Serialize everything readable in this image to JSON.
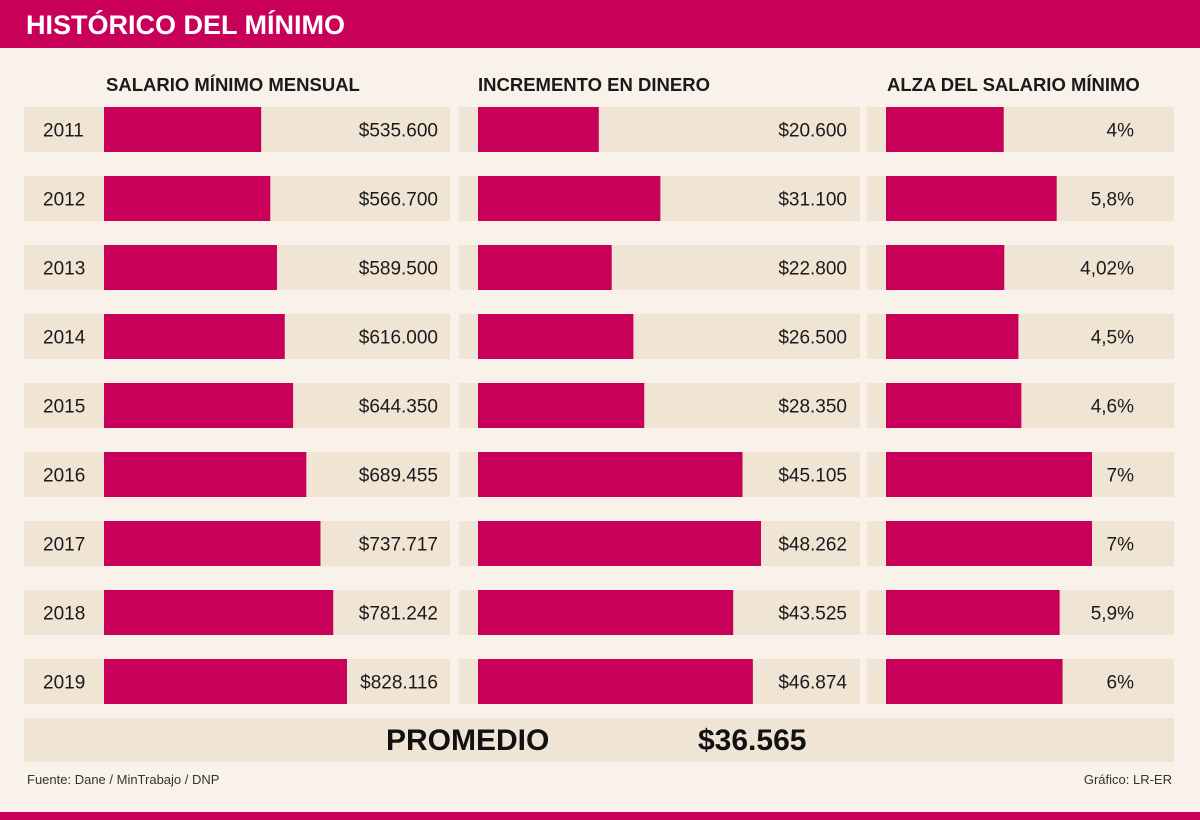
{
  "title": "HISTÓRICO DEL MÍNIMO",
  "chart_data": {
    "type": "bar",
    "categories": [
      "2011",
      "2012",
      "2013",
      "2014",
      "2015",
      "2016",
      "2017",
      "2018",
      "2019"
    ],
    "series": [
      {
        "name": "SALARIO MÍNIMO MENSUAL",
        "values": [
          535600,
          566700,
          589500,
          616000,
          644350,
          689455,
          737717,
          781242,
          828116
        ],
        "labels": [
          "$535.600",
          "$566.700",
          "$589.500",
          "$616.000",
          "$644.350",
          "$689.455",
          "$737.717",
          "$781.242",
          "$828.116"
        ]
      },
      {
        "name": "INCREMENTO EN DINERO",
        "values": [
          20600,
          31100,
          22800,
          26500,
          28350,
          45105,
          48262,
          43525,
          46874
        ],
        "labels": [
          "$20.600",
          "$31.100",
          "$22.800",
          "$26.500",
          "$28.350",
          "$45.105",
          "$48.262",
          "$43.525",
          "$46.874"
        ]
      },
      {
        "name": "ALZA DEL SALARIO MÍNIMO",
        "values": [
          4,
          5.8,
          4.02,
          4.5,
          4.6,
          7,
          7,
          5.9,
          6
        ],
        "labels": [
          "4%",
          "5,8%",
          "4,02%",
          "4,5%",
          "4,6%",
          "7%",
          "7%",
          "5,9%",
          "6%"
        ]
      }
    ],
    "average": {
      "label": "PROMEDIO",
      "value": "$36.565"
    }
  },
  "source": "Fuente: Dane / MinTrabajo / DNP",
  "credit": "Gráfico: LR-ER",
  "colors": {
    "accent": "#c80059",
    "row_background": "#f0e5d5",
    "page_background": "#f8f2ea"
  }
}
